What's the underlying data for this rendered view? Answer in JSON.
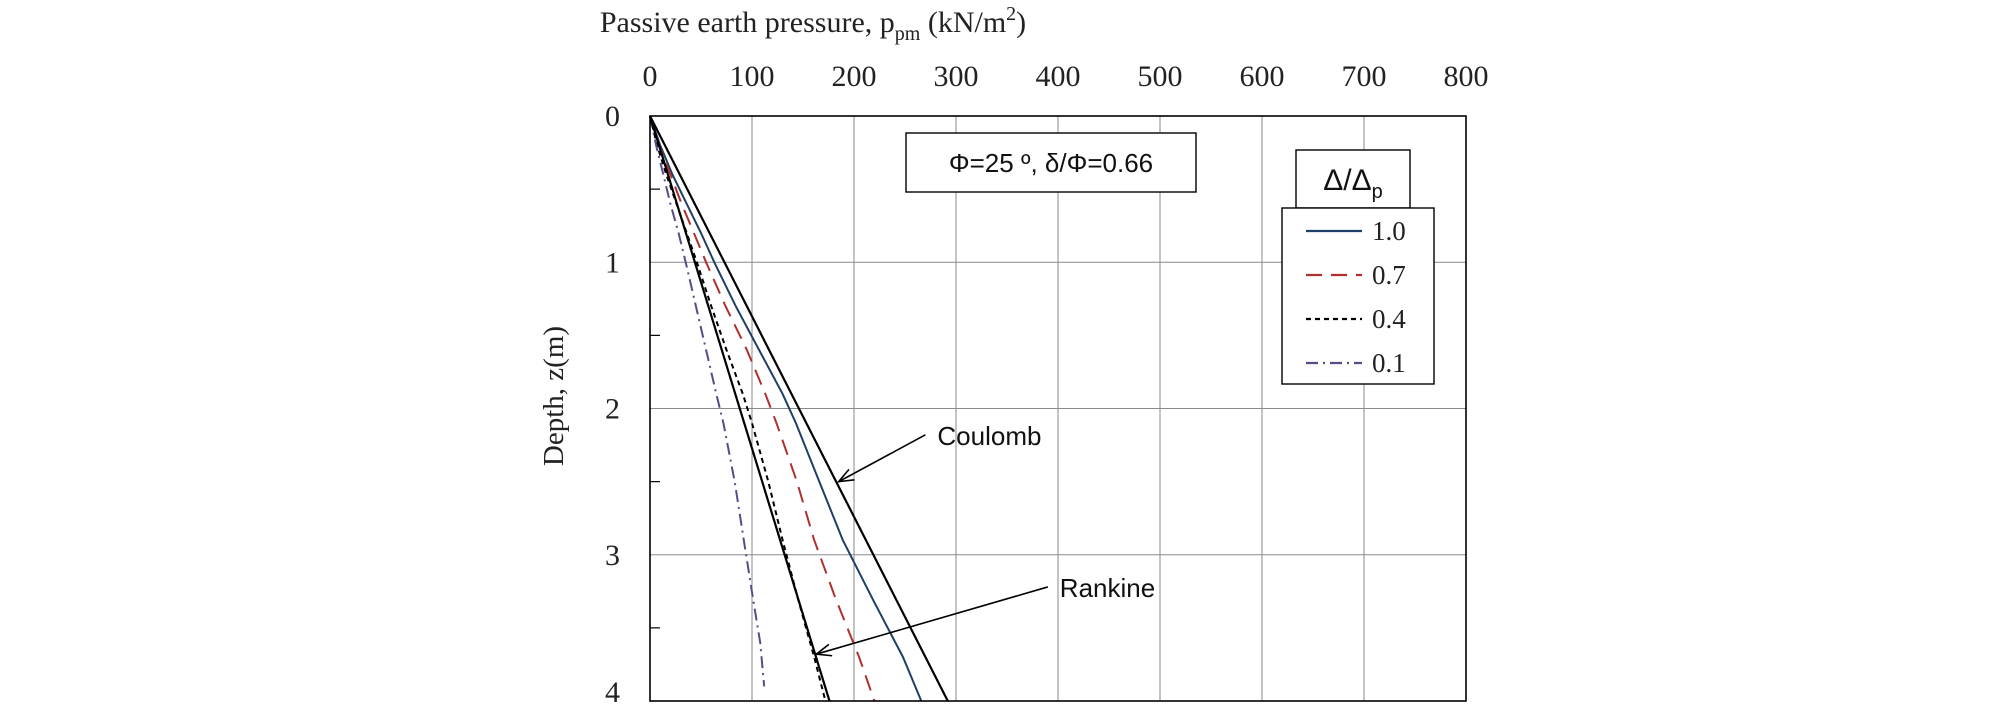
{
  "chart_data": {
    "type": "line",
    "xlabel": "Passive earth pressure, p",
    "xlabel_sub": "pm",
    "xlabel_unit_open": " (kN/m",
    "xlabel_unit_sup": "2",
    "xlabel_unit_close": ")",
    "ylabel": "Depth, z(m)",
    "x_axis_position": "top",
    "y_axis_inverted": true,
    "xlim": [
      0,
      800
    ],
    "ylim": [
      0,
      4
    ],
    "x_ticks": [
      0,
      100,
      200,
      300,
      400,
      500,
      600,
      700,
      800
    ],
    "y_ticks": [
      0,
      1,
      2,
      3,
      4
    ],
    "grid": true,
    "parameter_box": "Φ=25 º, δ/Φ=0.66",
    "legend": {
      "placement": "top-right",
      "title_main": "Δ/Δ",
      "title_sub": "p",
      "entries": [
        {
          "label": "1.0",
          "color": "#1f3f66",
          "style": "solid"
        },
        {
          "label": "0.7",
          "color": "#b03030",
          "style": "dashed"
        },
        {
          "label": "0.4",
          "color": "#000000",
          "style": "dotted"
        },
        {
          "label": "0.1",
          "color": "#5a4a8a",
          "style": "dashdot"
        }
      ]
    },
    "series": [
      {
        "name": "1.0",
        "color": "#1f3f66",
        "style": "solid",
        "points": [
          [
            0,
            0
          ],
          [
            10,
            0.2
          ],
          [
            22,
            0.4
          ],
          [
            36,
            0.6
          ],
          [
            50,
            0.8
          ],
          [
            63,
            1.0
          ],
          [
            84,
            1.3
          ],
          [
            107,
            1.6
          ],
          [
            130,
            1.9
          ],
          [
            143,
            2.1
          ],
          [
            166,
            2.5
          ],
          [
            189,
            2.9
          ],
          [
            218,
            3.3
          ],
          [
            248,
            3.7
          ],
          [
            266,
            4.0
          ]
        ]
      },
      {
        "name": "0.7",
        "color": "#b03030",
        "style": "dashed",
        "points": [
          [
            0,
            0
          ],
          [
            9,
            0.2
          ],
          [
            20,
            0.4
          ],
          [
            31,
            0.6
          ],
          [
            43,
            0.8
          ],
          [
            55,
            1.0
          ],
          [
            74,
            1.3
          ],
          [
            95,
            1.6
          ],
          [
            113,
            1.9
          ],
          [
            124,
            2.1
          ],
          [
            144,
            2.5
          ],
          [
            161,
            2.9
          ],
          [
            182,
            3.3
          ],
          [
            205,
            3.7
          ],
          [
            220,
            4.0
          ]
        ]
      },
      {
        "name": "0.4",
        "color": "#000000",
        "style": "dotted",
        "points": [
          [
            0,
            0
          ],
          [
            7,
            0.2
          ],
          [
            16,
            0.4
          ],
          [
            26,
            0.6
          ],
          [
            36,
            0.8
          ],
          [
            46,
            1.0
          ],
          [
            60,
            1.3
          ],
          [
            75,
            1.6
          ],
          [
            91,
            1.9
          ],
          [
            100,
            2.1
          ],
          [
            116,
            2.5
          ],
          [
            130,
            2.9
          ],
          [
            145,
            3.3
          ],
          [
            161,
            3.7
          ],
          [
            172,
            4.0
          ]
        ]
      },
      {
        "name": "0.1",
        "color": "#5a4a8a",
        "style": "dashdot",
        "points": [
          [
            0,
            0
          ],
          [
            6,
            0.2
          ],
          [
            13,
            0.4
          ],
          [
            20,
            0.6
          ],
          [
            28,
            0.8
          ],
          [
            35,
            1.0
          ],
          [
            45,
            1.3
          ],
          [
            55,
            1.6
          ],
          [
            65,
            1.9
          ],
          [
            72,
            2.1
          ],
          [
            83,
            2.5
          ],
          [
            92,
            2.9
          ],
          [
            101,
            3.3
          ],
          [
            108,
            3.6
          ],
          [
            112,
            3.9
          ]
        ]
      },
      {
        "name": "Coulomb",
        "color": "#000000",
        "style": "solid",
        "points": [
          [
            0,
            0
          ],
          [
            292,
            4.0
          ]
        ]
      },
      {
        "name": "Rankine",
        "color": "#000000",
        "style": "solid",
        "points": [
          [
            0,
            0
          ],
          [
            176,
            4.0
          ]
        ]
      }
    ],
    "annotations": [
      {
        "text": "Coulomb",
        "arrow_to": [
          185,
          2.5
        ],
        "label_at": [
          270,
          2.18
        ]
      },
      {
        "text": "Rankine",
        "arrow_to": [
          163,
          3.68
        ],
        "label_at": [
          390,
          3.22
        ]
      }
    ]
  }
}
